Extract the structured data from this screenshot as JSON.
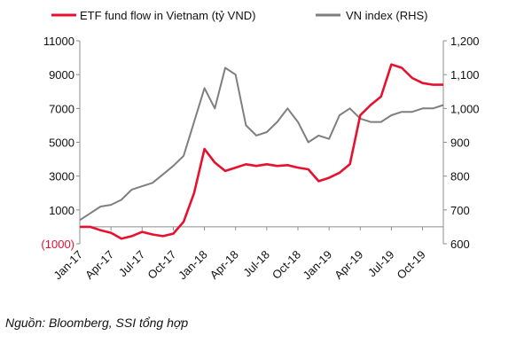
{
  "source_note": "Nguồn: Bloomberg, SSI tổng hợp",
  "chart_data": {
    "type": "line",
    "title": "",
    "legend_position": "top",
    "x": [
      "Jan-17",
      "Feb-17",
      "Mar-17",
      "Apr-17",
      "May-17",
      "Jun-17",
      "Jul-17",
      "Aug-17",
      "Sep-17",
      "Oct-17",
      "Nov-17",
      "Dec-17",
      "Jan-18",
      "Feb-18",
      "Mar-18",
      "Apr-18",
      "May-18",
      "Jun-18",
      "Jul-18",
      "Aug-18",
      "Sep-18",
      "Oct-18",
      "Nov-18",
      "Dec-18",
      "Jan-19",
      "Feb-19",
      "Mar-19",
      "Apr-19",
      "May-19",
      "Jun-19",
      "Jul-19",
      "Aug-19",
      "Sep-19",
      "Oct-19",
      "Nov-19",
      "Dec-19"
    ],
    "x_tick_labels": [
      "Jan-17",
      "Apr-17",
      "Jul-17",
      "Oct-17",
      "Jan-18",
      "Apr-18",
      "Jul-18",
      "Oct-18",
      "Jan-19",
      "Apr-19",
      "Jul-19",
      "Oct-19"
    ],
    "series": [
      {
        "name": "ETF  fund flow in Vietnam (tỷ VND)",
        "axis": "left",
        "color": "#e8102f",
        "values": [
          0,
          0,
          -200,
          -350,
          -700,
          -550,
          -300,
          -450,
          -550,
          -400,
          300,
          2000,
          4600,
          3800,
          3300,
          3500,
          3700,
          3600,
          3700,
          3600,
          3650,
          3500,
          3400,
          2700,
          2900,
          3200,
          3700,
          6600,
          7200,
          7700,
          9600,
          9400,
          8800,
          8500,
          8400,
          8400
        ]
      },
      {
        "name": "VN index (RHS)",
        "axis": "right",
        "color": "#7f7f7f",
        "values": [
          670,
          690,
          710,
          715,
          730,
          760,
          770,
          780,
          805,
          830,
          860,
          960,
          1060,
          1000,
          1120,
          1100,
          950,
          920,
          930,
          960,
          1000,
          960,
          900,
          920,
          910,
          980,
          1000,
          970,
          960,
          960,
          980,
          990,
          990,
          1000,
          1000,
          1010
        ]
      }
    ],
    "y_left": {
      "ticks": [
        "11000",
        "9000",
        "7000",
        "5000",
        "3000",
        "1000",
        "(1000)"
      ],
      "ylim": [
        -1000,
        11000
      ],
      "negative_tick_color": "#e8102f"
    },
    "y_right": {
      "ticks": [
        "1,200",
        "1,100",
        "1,000",
        "900",
        "800",
        "700",
        "600"
      ],
      "ylim": [
        600,
        1200
      ]
    }
  }
}
